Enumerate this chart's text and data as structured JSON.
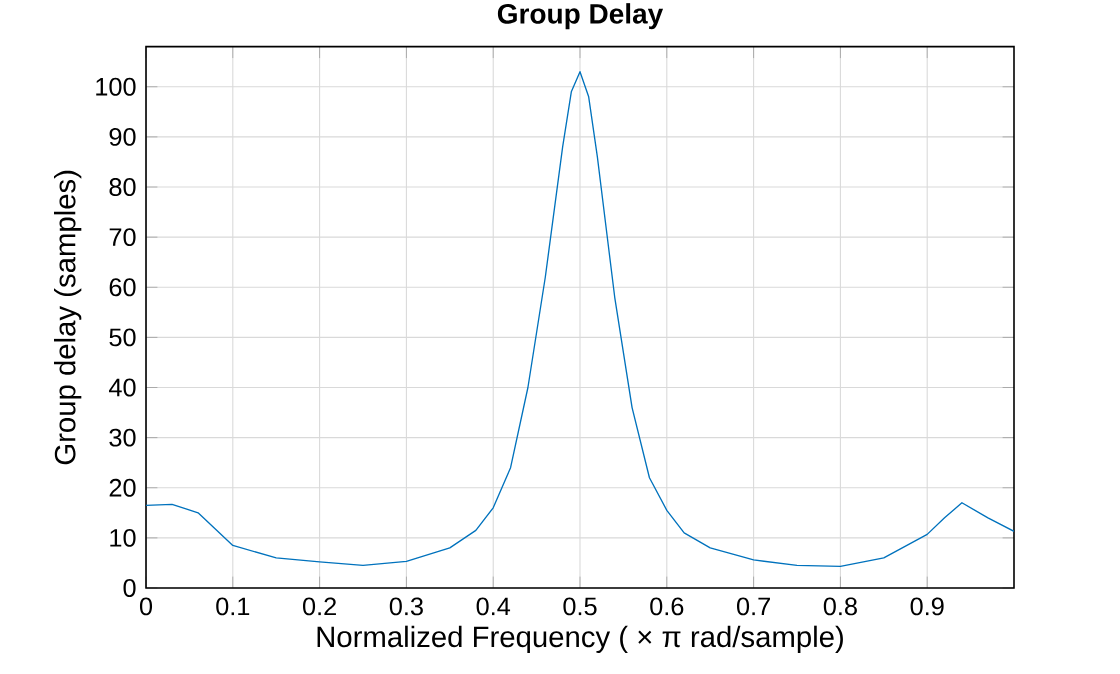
{
  "chart_data": {
    "type": "line",
    "title": "Group Delay",
    "xlabel": "Normalized  Frequency    ( × π  rad/sample)",
    "ylabel": "Group delay (samples)",
    "x": [
      0,
      0.03,
      0.06,
      0.1,
      0.15,
      0.2,
      0.25,
      0.3,
      0.35,
      0.38,
      0.4,
      0.42,
      0.44,
      0.46,
      0.48,
      0.49,
      0.5,
      0.51,
      0.52,
      0.54,
      0.56,
      0.58,
      0.6,
      0.62,
      0.65,
      0.7,
      0.75,
      0.8,
      0.85,
      0.9,
      0.92,
      0.94,
      0.97,
      1.0
    ],
    "series": [
      {
        "color": "#0072bd",
        "values": [
          16.5,
          16.7,
          15,
          8.5,
          6,
          5.2,
          4.5,
          5.3,
          8,
          11.5,
          16,
          24,
          40,
          62,
          88,
          99,
          103,
          98,
          86,
          58,
          36,
          22,
          15.5,
          11,
          8,
          5.6,
          4.5,
          4.3,
          6,
          10.7,
          14,
          17,
          14,
          11.3
        ]
      }
    ],
    "xlim": [
      0,
      1
    ],
    "ylim": [
      0,
      108
    ],
    "xticks": [
      0,
      0.1,
      0.2,
      0.3,
      0.4,
      0.5,
      0.6,
      0.7,
      0.8,
      0.9
    ],
    "yticks": [
      0,
      10,
      20,
      30,
      40,
      50,
      60,
      70,
      80,
      90,
      100
    ],
    "grid": true,
    "line_style": "solid",
    "marker": "none"
  }
}
